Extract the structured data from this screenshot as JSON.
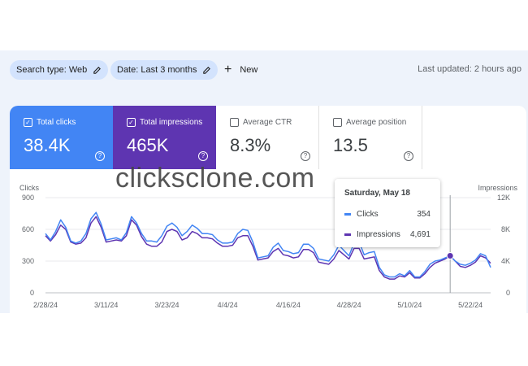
{
  "toolbar": {
    "search_type_chip": "Search type: Web",
    "date_chip": "Date: Last 3 months",
    "new_label": "New",
    "last_updated": "Last updated: 2 hours ago"
  },
  "metrics": [
    {
      "label": "Total clicks",
      "value": "38.4K",
      "checked": true
    },
    {
      "label": "Total impressions",
      "value": "465K",
      "checked": true
    },
    {
      "label": "Average CTR",
      "value": "8.3%",
      "checked": false
    },
    {
      "label": "Average position",
      "value": "13.5",
      "checked": false
    }
  ],
  "watermark": "clicksclone.com",
  "tooltip": {
    "date": "Saturday, May 18",
    "rows": [
      {
        "name": "Clicks",
        "value": "354",
        "color": "#4285f4"
      },
      {
        "name": "Impressions",
        "value": "4,691",
        "color": "#5e35b1"
      }
    ]
  },
  "colors": {
    "clicks": "#4285f4",
    "impressions": "#5e35b1"
  },
  "chart_data": {
    "type": "line",
    "left_axis_label": "Clicks",
    "right_axis_label": "Impressions",
    "left_ticks": [
      "900",
      "600",
      "300",
      "0"
    ],
    "left_tick_values": [
      900,
      600,
      300,
      0
    ],
    "right_ticks": [
      "12K",
      "8K",
      "4K",
      "0"
    ],
    "right_tick_values": [
      12000,
      8000,
      4000,
      0
    ],
    "x_ticks": [
      "2/28/24",
      "3/11/24",
      "3/23/24",
      "4/4/24",
      "4/16/24",
      "4/28/24",
      "5/10/24",
      "5/22/24"
    ],
    "x_tick_day_index": [
      0,
      12,
      24,
      36,
      48,
      60,
      72,
      84
    ],
    "ylim_left": [
      0,
      900
    ],
    "ylim_right": [
      0,
      12000
    ],
    "highlight_day_index": 80,
    "series": [
      {
        "name": "Clicks",
        "axis": "left",
        "values": [
          560,
          500,
          580,
          690,
          620,
          490,
          470,
          490,
          560,
          700,
          760,
          650,
          500,
          510,
          520,
          500,
          570,
          720,
          660,
          560,
          490,
          490,
          480,
          540,
          630,
          660,
          620,
          540,
          580,
          640,
          610,
          560,
          560,
          550,
          500,
          470,
          470,
          480,
          560,
          600,
          590,
          480,
          330,
          340,
          350,
          430,
          470,
          400,
          390,
          370,
          380,
          460,
          460,
          420,
          320,
          310,
          300,
          360,
          450,
          400,
          350,
          470,
          480,
          360,
          380,
          390,
          240,
          170,
          150,
          150,
          180,
          160,
          210,
          150,
          150,
          200,
          270,
          300,
          310,
          330,
          350,
          300,
          270,
          260,
          280,
          310,
          370,
          350,
          240
        ]
      },
      {
        "name": "Impressions",
        "axis": "left",
        "values": [
          540,
          490,
          550,
          640,
          600,
          480,
          460,
          470,
          520,
          660,
          720,
          620,
          480,
          490,
          500,
          490,
          540,
          690,
          640,
          530,
          460,
          440,
          440,
          480,
          580,
          600,
          580,
          500,
          520,
          580,
          560,
          520,
          520,
          510,
          470,
          440,
          440,
          450,
          520,
          540,
          540,
          440,
          310,
          320,
          330,
          390,
          420,
          360,
          350,
          330,
          340,
          410,
          410,
          380,
          290,
          280,
          270,
          320,
          400,
          360,
          320,
          420,
          420,
          320,
          330,
          340,
          210,
          150,
          130,
          130,
          160,
          150,
          190,
          140,
          140,
          180,
          240,
          280,
          300,
          320,
          350,
          300,
          250,
          240,
          260,
          290,
          350,
          330,
          280
        ]
      }
    ]
  }
}
